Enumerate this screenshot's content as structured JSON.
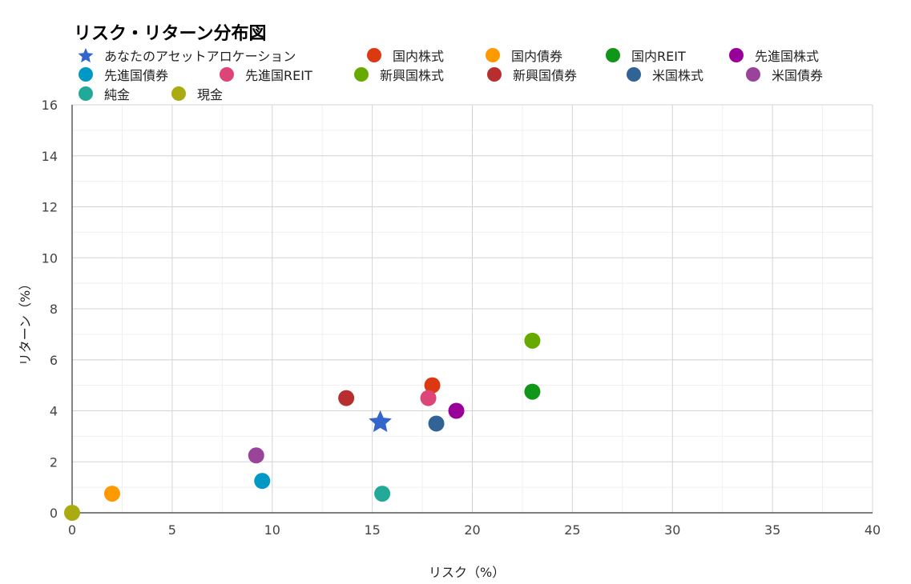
{
  "chart_data": {
    "type": "scatter",
    "title": "リスク・リターン分布図",
    "xlabel": "リスク（%）",
    "ylabel": "リターン（%）",
    "xlim": [
      0,
      40
    ],
    "ylim": [
      0,
      16
    ],
    "x_ticks": [
      0,
      5,
      10,
      15,
      20,
      25,
      30,
      35,
      40
    ],
    "y_ticks": [
      0,
      2,
      4,
      6,
      8,
      10,
      12,
      14,
      16
    ],
    "grid": true,
    "legend_position": "top",
    "series": [
      {
        "name": "あなたのアセットアロケーション",
        "marker": "star",
        "color": "#3366cc",
        "points": [
          {
            "x": 15.4,
            "y": 3.55
          }
        ]
      },
      {
        "name": "国内株式",
        "marker": "circle",
        "color": "#dc3912",
        "points": [
          {
            "x": 18.0,
            "y": 5.0
          }
        ]
      },
      {
        "name": "国内債券",
        "marker": "circle",
        "color": "#ff9900",
        "points": [
          {
            "x": 2.0,
            "y": 0.75
          }
        ]
      },
      {
        "name": "国内REIT",
        "marker": "circle",
        "color": "#109618",
        "points": [
          {
            "x": 23.0,
            "y": 4.75
          }
        ]
      },
      {
        "name": "先進国株式",
        "marker": "circle",
        "color": "#990099",
        "points": [
          {
            "x": 19.2,
            "y": 4.0
          }
        ]
      },
      {
        "name": "先進国債券",
        "marker": "circle",
        "color": "#0099c6",
        "points": [
          {
            "x": 9.5,
            "y": 1.25
          }
        ]
      },
      {
        "name": "先進国REIT",
        "marker": "circle",
        "color": "#dd4477",
        "points": [
          {
            "x": 17.8,
            "y": 4.5
          }
        ]
      },
      {
        "name": "新興国株式",
        "marker": "circle",
        "color": "#66aa00",
        "points": [
          {
            "x": 23.0,
            "y": 6.75
          }
        ]
      },
      {
        "name": "新興国債券",
        "marker": "circle",
        "color": "#b82e2e",
        "points": [
          {
            "x": 13.7,
            "y": 4.5
          }
        ]
      },
      {
        "name": "米国株式",
        "marker": "circle",
        "color": "#316395",
        "points": [
          {
            "x": 18.2,
            "y": 3.5
          }
        ]
      },
      {
        "name": "米国債券",
        "marker": "circle",
        "color": "#994499",
        "points": [
          {
            "x": 9.2,
            "y": 2.25
          }
        ]
      },
      {
        "name": "純金",
        "marker": "circle",
        "color": "#22aa99",
        "points": [
          {
            "x": 15.5,
            "y": 0.75
          }
        ]
      },
      {
        "name": "現金",
        "marker": "circle",
        "color": "#aaaa11",
        "points": [
          {
            "x": 0.0,
            "y": 0.0
          }
        ]
      }
    ]
  }
}
